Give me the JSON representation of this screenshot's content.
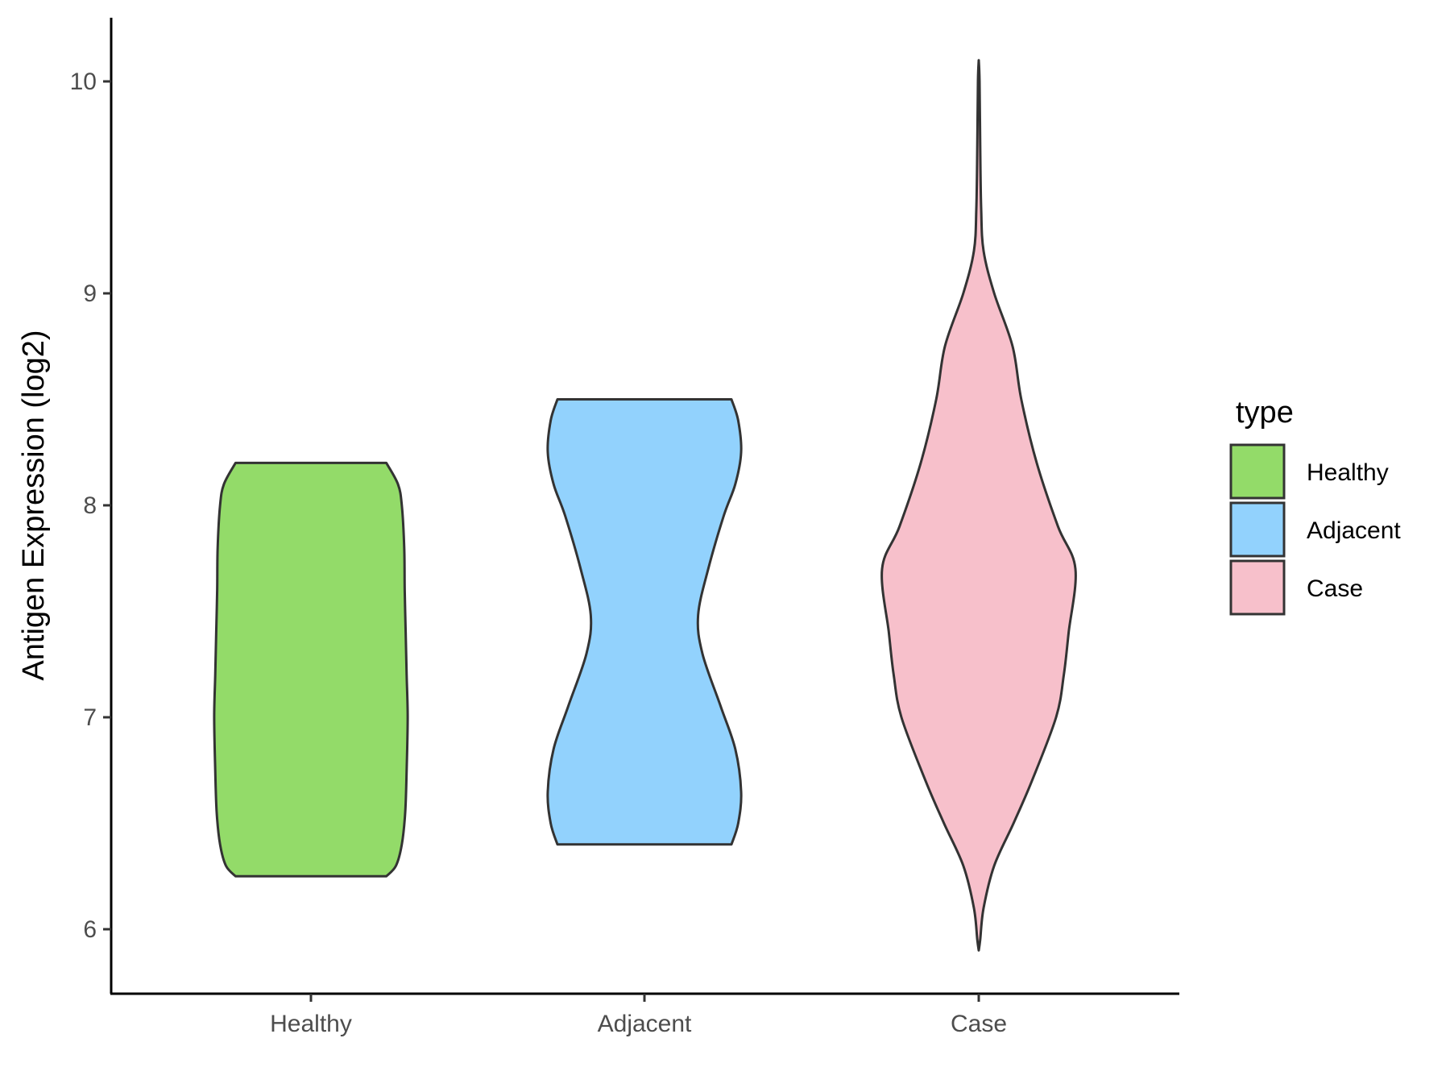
{
  "chart_data": {
    "type": "violin",
    "title": "",
    "xlabel": "",
    "ylabel": "Antigen Expression (log2)",
    "ylim": [
      5.7,
      10.3
    ],
    "y_ticks": [
      6,
      7,
      8,
      9,
      10
    ],
    "y_tick_labels": [
      "6",
      "7",
      "8",
      "9",
      "10"
    ],
    "categories": [
      "Healthy",
      "Adjacent",
      "Case"
    ],
    "grid": false,
    "legend": {
      "title": "type",
      "position": "right",
      "entries": [
        "Healthy",
        "Adjacent",
        "Case"
      ]
    },
    "colors": {
      "Healthy": "#93DB69",
      "Adjacent": "#92D2FD",
      "Case": "#F7C0CB",
      "outline": "#333333"
    },
    "series": [
      {
        "category": "Healthy",
        "min": 6.25,
        "max": 8.2,
        "density_profile": [
          [
            6.25,
            0.78
          ],
          [
            6.3,
            0.88
          ],
          [
            6.4,
            0.94
          ],
          [
            6.55,
            0.975
          ],
          [
            6.75,
            0.99
          ],
          [
            7.0,
            1.0
          ],
          [
            7.2,
            0.99
          ],
          [
            7.4,
            0.98
          ],
          [
            7.6,
            0.97
          ],
          [
            7.8,
            0.965
          ],
          [
            8.0,
            0.94
          ],
          [
            8.1,
            0.9
          ],
          [
            8.2,
            0.78
          ]
        ]
      },
      {
        "category": "Adjacent",
        "min": 6.4,
        "max": 8.5,
        "density_profile": [
          [
            6.4,
            0.9
          ],
          [
            6.5,
            0.97
          ],
          [
            6.65,
            1.0
          ],
          [
            6.85,
            0.94
          ],
          [
            7.05,
            0.79
          ],
          [
            7.3,
            0.6
          ],
          [
            7.48,
            0.555
          ],
          [
            7.7,
            0.66
          ],
          [
            7.95,
            0.82
          ],
          [
            8.1,
            0.94
          ],
          [
            8.25,
            1.0
          ],
          [
            8.4,
            0.97
          ],
          [
            8.5,
            0.9
          ]
        ]
      },
      {
        "category": "Case",
        "min": 5.9,
        "max": 10.1,
        "density_profile": [
          [
            5.9,
            0.0
          ],
          [
            5.95,
            0.015
          ],
          [
            6.1,
            0.05
          ],
          [
            6.3,
            0.16
          ],
          [
            6.5,
            0.36
          ],
          [
            6.7,
            0.55
          ],
          [
            7.0,
            0.8
          ],
          [
            7.2,
            0.88
          ],
          [
            7.4,
            0.93
          ],
          [
            7.7,
            1.0
          ],
          [
            7.9,
            0.82
          ],
          [
            8.2,
            0.6
          ],
          [
            8.5,
            0.44
          ],
          [
            8.75,
            0.35
          ],
          [
            9.0,
            0.16
          ],
          [
            9.2,
            0.05
          ],
          [
            9.4,
            0.025
          ],
          [
            9.7,
            0.015
          ],
          [
            10.0,
            0.008
          ],
          [
            10.1,
            0.0
          ]
        ]
      }
    ]
  }
}
